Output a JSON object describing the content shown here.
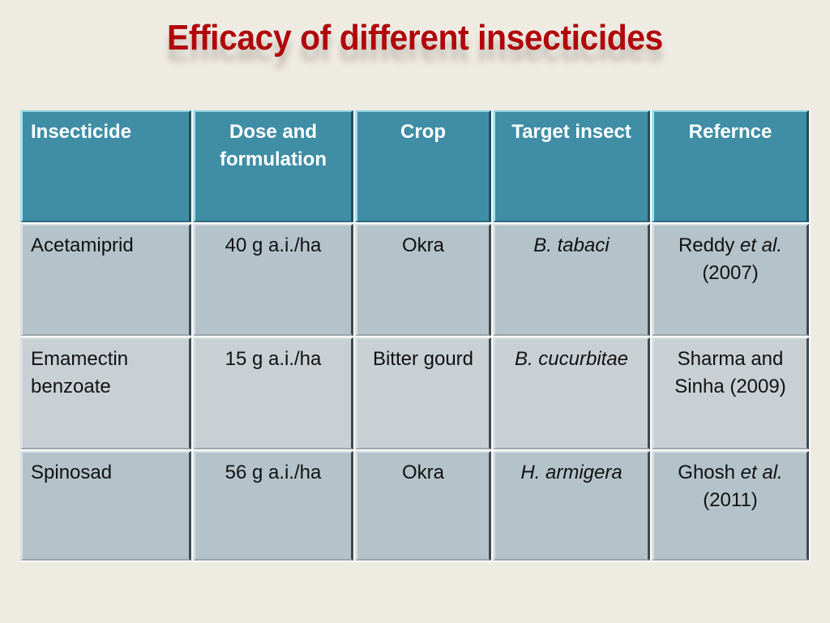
{
  "slide": {
    "title": "Efficacy of different insecticides"
  },
  "table": {
    "headers": [
      "Insecticide",
      "Dose and formulation",
      "Crop",
      "Target insect",
      "Refernce"
    ],
    "rows": [
      {
        "insecticide": "Acetamiprid",
        "dose": "40 g a.i./ha",
        "crop": "Okra",
        "target": "B. tabaci",
        "reference_author": "Reddy",
        "reference_etal": "et al.",
        "reference_year": "(2007)"
      },
      {
        "insecticide": "Emamectin benzoate",
        "dose": "15 g a.i./ha",
        "crop": "Bitter gourd",
        "target": "B. cucurbitae",
        "reference_author": "Sharma and Sinha",
        "reference_etal": "",
        "reference_year": "(2009)"
      },
      {
        "insecticide": "Spinosad",
        "dose": "56 g a.i./ha",
        "crop": "Okra",
        "target": "H. armigera",
        "reference_author": "Ghosh",
        "reference_etal": "et al.",
        "reference_year": "(2011)"
      }
    ]
  },
  "colors": {
    "title": "#b0070b",
    "header_bg": "#3f8ea6",
    "row_bg": "#b4c3ca",
    "row_alt_bg": "#c8d0d4",
    "background": "#eeebe3"
  }
}
